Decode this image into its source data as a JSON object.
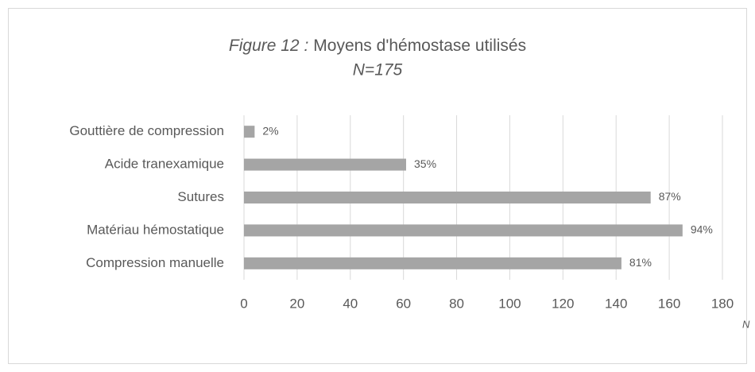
{
  "chart_data": {
    "type": "hbar",
    "title_label": "Figure 12 :",
    "title": "Moyens d'hémostase utilisés",
    "subtitle": "N=175",
    "x_label": "N",
    "categories": [
      "Gouttière de compression",
      "Acide tranexamique",
      "Sutures",
      "Matériau hémostatique",
      "Compression manuelle"
    ],
    "values": [
      4,
      61,
      153,
      165,
      142
    ],
    "value_labels": [
      "2%",
      "35%",
      "87%",
      "94%",
      "81%"
    ],
    "color": "#a5a5a5",
    "xlim": [
      0,
      180
    ],
    "xticks": [
      0,
      20,
      40,
      60,
      80,
      100,
      120,
      140,
      160,
      180
    ],
    "grid": true
  }
}
